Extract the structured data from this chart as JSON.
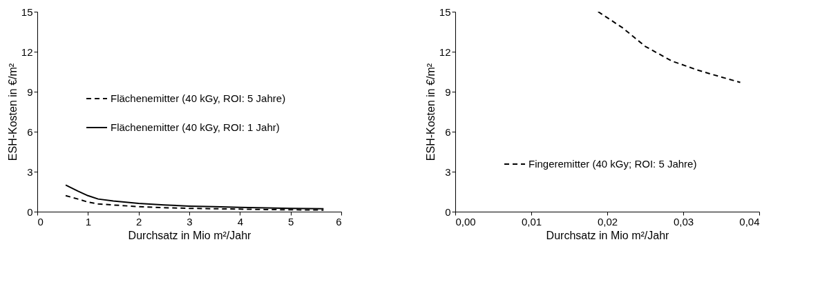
{
  "chart_data": [
    {
      "type": "line",
      "xlabel": "Durchsatz in Mio m²/Jahr",
      "ylabel": "ESH-Kosten in €/m²",
      "xlim": [
        0,
        6
      ],
      "xticks": [
        0,
        1,
        2,
        3,
        4,
        5,
        6
      ],
      "ylim": [
        0,
        15
      ],
      "yticks": [
        0,
        3,
        6,
        9,
        12,
        15
      ],
      "grid": false,
      "legend": "left",
      "marker": "none",
      "x": [
        0.56,
        0.8,
        1.0,
        1.2,
        1.5,
        2.0,
        2.5,
        3.0,
        3.5,
        4.0,
        4.5,
        5.0,
        5.65
      ],
      "series": [
        {
          "name": "Flächenemitter (40 kGy, ROI: 5 Jahre)",
          "color": "#000000",
          "line_style": "dashed",
          "values": [
            1.2,
            0.95,
            0.72,
            0.58,
            0.5,
            0.38,
            0.3,
            0.25,
            0.22,
            0.19,
            0.16,
            0.14,
            0.12
          ]
        },
        {
          "name": "Flächenemitter (40 kGy, ROI: 1 Jahr)",
          "color": "#000000",
          "line_style": "solid",
          "values": [
            2.0,
            1.55,
            1.2,
            0.95,
            0.8,
            0.62,
            0.5,
            0.42,
            0.37,
            0.32,
            0.28,
            0.25,
            0.22
          ]
        }
      ]
    },
    {
      "type": "line",
      "xlabel": "Durchsatz in Mio m²/Jahr",
      "ylabel": "ESH-Kosten in €/m²",
      "xlim": [
        0,
        0.04
      ],
      "xticks": [
        {
          "value": 0,
          "label": "0,00"
        },
        {
          "value": 0.01,
          "label": "0,01"
        },
        {
          "value": 0.02,
          "label": "0,02"
        },
        {
          "value": 0.03,
          "label": "0,03"
        },
        {
          "value": 0.04,
          "label": "0,04"
        }
      ],
      "ylim": [
        0,
        15
      ],
      "yticks": [
        0,
        3,
        6,
        9,
        12,
        15
      ],
      "grid": false,
      "legend": "bottom left",
      "marker": "none",
      "x": [
        0.0188,
        0.022,
        0.025,
        0.0285,
        0.032,
        0.035,
        0.0375
      ],
      "series": [
        {
          "name": "Fingeremitter (40 kGy; ROI: 5 Jahre)",
          "color": "#000000",
          "line_style": "dashed",
          "values": [
            15.0,
            13.8,
            12.4,
            11.3,
            10.6,
            10.1,
            9.7
          ]
        }
      ]
    }
  ]
}
